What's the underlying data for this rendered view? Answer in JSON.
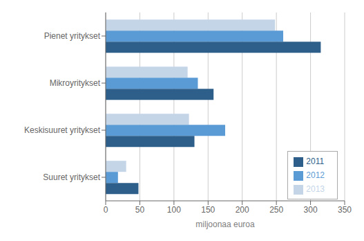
{
  "chart_data": {
    "type": "bar",
    "orientation": "horizontal",
    "categories": [
      "Suuret yritykset",
      "Keskisuuret yritykset",
      "Mikroyritykset",
      "Pienet yritykset"
    ],
    "series": [
      {
        "name": "2013",
        "color": "#c5d5e8",
        "values": [
          30,
          122,
          120,
          248
        ]
      },
      {
        "name": "2012",
        "color": "#5b9bd5",
        "values": [
          18,
          175,
          135,
          260
        ]
      },
      {
        "name": "2011",
        "color": "#2e5f8a",
        "values": [
          48,
          130,
          158,
          315
        ]
      }
    ],
    "xlabel": "miljoonaa euroa",
    "xlim": [
      0,
      350
    ],
    "xticks": [
      0,
      50,
      100,
      150,
      200,
      250,
      300,
      350
    ],
    "grid": true,
    "legend": "lower right"
  }
}
